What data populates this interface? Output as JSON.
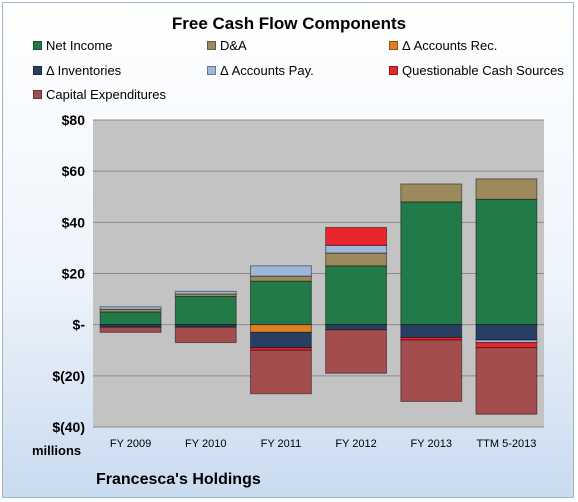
{
  "chart_data": {
    "type": "bar",
    "stacked": true,
    "title": "Free Cash Flow Components",
    "ylabel": "millions",
    "company": "Francesca's Holdings",
    "ylim": [
      -40,
      80
    ],
    "yticks": [
      {
        "value": 80,
        "label": "$80"
      },
      {
        "value": 60,
        "label": "$60"
      },
      {
        "value": 40,
        "label": "$40"
      },
      {
        "value": 20,
        "label": "$20"
      },
      {
        "value": 0,
        "label": "$-"
      },
      {
        "value": -20,
        "label": "$(20)"
      },
      {
        "value": -40,
        "label": "$(40)"
      }
    ],
    "categories": [
      "FY 2009",
      "FY 2010",
      "FY 2011",
      "FY 2012",
      "FY 2013",
      "TTM 5-2013"
    ],
    "legend_position": "top",
    "series": [
      {
        "name": "Net Income",
        "color": "#217a48",
        "values": [
          5,
          11,
          17,
          23,
          48,
          49
        ]
      },
      {
        "name": "D&A",
        "color": "#9c8a5c",
        "values": [
          1,
          1,
          2,
          5,
          7,
          8
        ]
      },
      {
        "name": "Δ Accounts Rec.",
        "color": "#e07f1f",
        "values": [
          0,
          0,
          -3,
          0,
          0,
          0
        ]
      },
      {
        "name": "Δ Inventories",
        "color": "#283f63",
        "values": [
          -1,
          -1,
          -6,
          -2,
          -5,
          -6
        ]
      },
      {
        "name": "Δ Accounts Pay.",
        "color": "#9fb8da",
        "values": [
          1,
          1,
          4,
          3,
          0,
          -1
        ]
      },
      {
        "name": "Questionable Cash Sources",
        "color": "#e8262b",
        "values": [
          0,
          0,
          -1,
          7,
          -1,
          -2
        ]
      },
      {
        "name": "Capital Expenditures",
        "color": "#a34d4f",
        "values": [
          -2,
          -6,
          -17,
          -17,
          -24,
          -26
        ]
      }
    ]
  }
}
